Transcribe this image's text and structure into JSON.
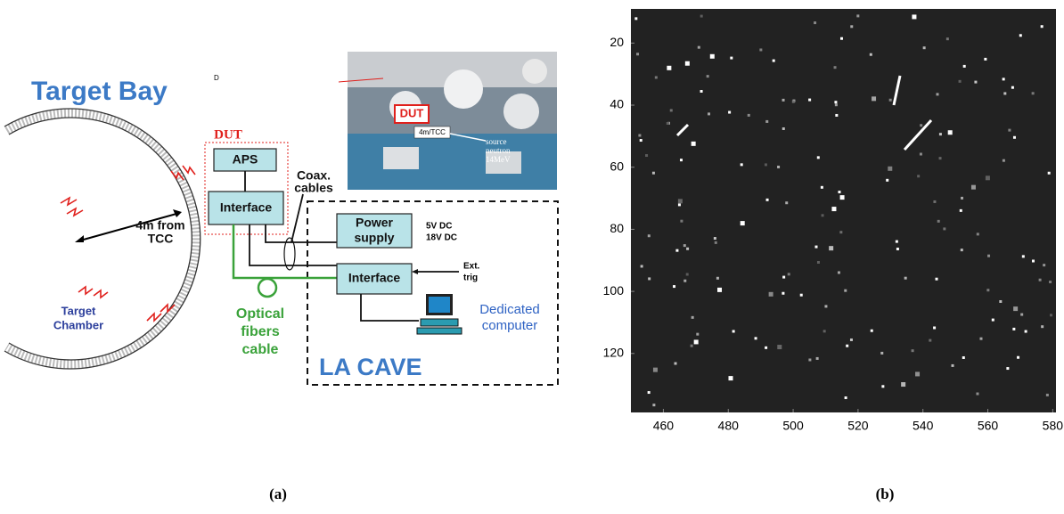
{
  "panel_a": {
    "title": "Target Bay",
    "marker": "D",
    "dut_label": "DUT",
    "aps": "APS",
    "dut_interface": "Interface",
    "distance": [
      "4m from",
      "TCC"
    ],
    "chamber": [
      "Target",
      "Chamber"
    ],
    "coax": [
      "Coax.",
      "cables"
    ],
    "power_supply": [
      "Power",
      "supply"
    ],
    "voltages": [
      "5V DC",
      "18V DC"
    ],
    "cave_interface": "Interface",
    "ext_trig": [
      "Ext.",
      "trig"
    ],
    "optical": [
      "Optical",
      "fibers",
      "cable"
    ],
    "computer": [
      "Dedicated",
      "computer"
    ],
    "cave": "LA CAVE",
    "photo": {
      "dut": "DUT",
      "distance": "4m/TCC",
      "source": [
        "source",
        "neutron",
        "14MeV"
      ]
    },
    "caption": "(a)"
  },
  "panel_b": {
    "xlim": [
      450,
      581
    ],
    "ylim": [
      9,
      139
    ],
    "xticks": [
      460,
      480,
      500,
      520,
      540,
      560,
      580
    ],
    "yticks": [
      20,
      40,
      60,
      80,
      100,
      120
    ],
    "caption": "(b)"
  }
}
